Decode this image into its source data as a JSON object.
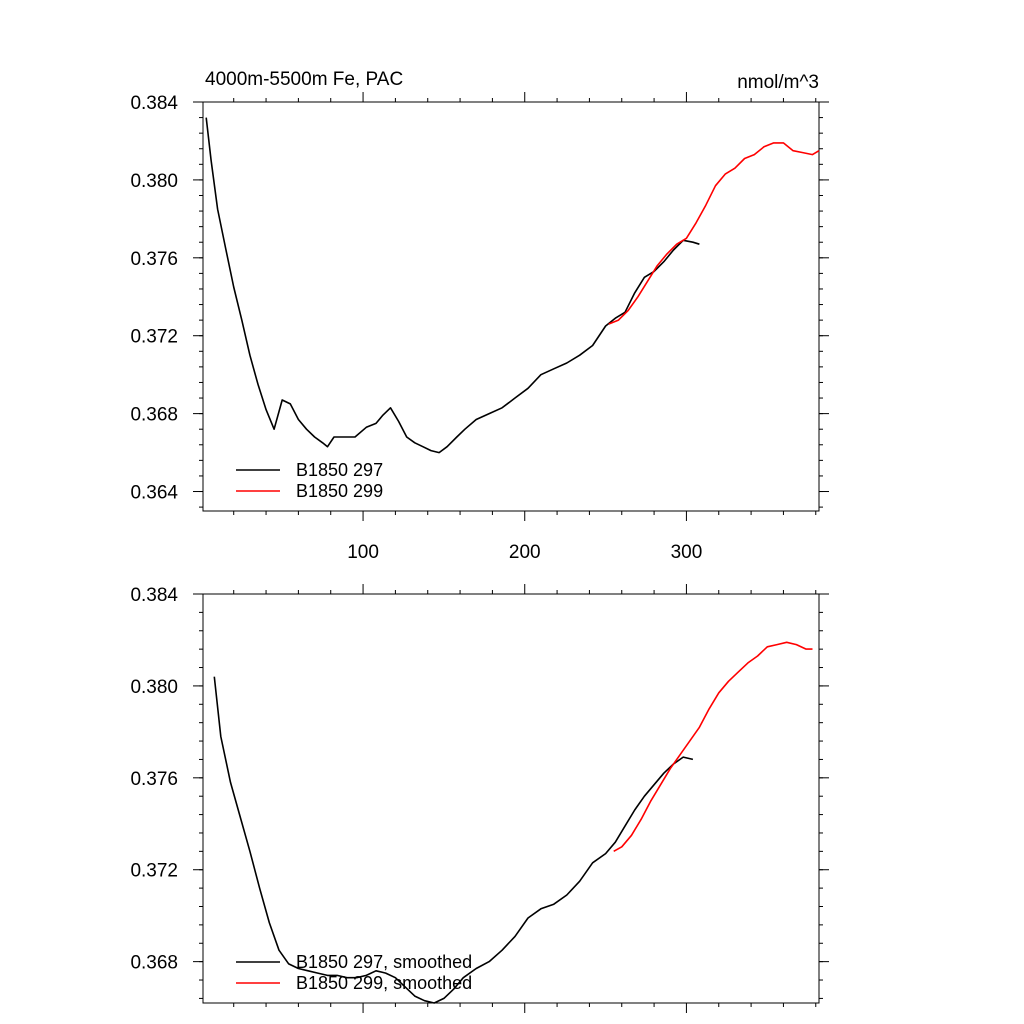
{
  "chart_data": [
    {
      "type": "line",
      "title": "4000m-5500m Fe, PAC",
      "units": "nmol/m^3",
      "xlabel": "",
      "ylabel": "",
      "xlim": [
        1,
        382
      ],
      "ylim": [
        0.363,
        0.384
      ],
      "xticks": [
        100,
        200,
        300
      ],
      "yticks": [
        0.364,
        0.368,
        0.372,
        0.376,
        0.38,
        0.384
      ],
      "ytick_labels": [
        "0.364",
        "0.368",
        "0.372",
        "0.376",
        "0.380",
        "0.384"
      ],
      "xtick_labels": [
        "100",
        "200",
        "300"
      ],
      "grid": false,
      "legend_position": "bottom-left",
      "series": [
        {
          "name": "B1850 297",
          "color": "#000000",
          "x": [
            3,
            6,
            10,
            15,
            20,
            25,
            30,
            35,
            40,
            45,
            50,
            55,
            60,
            65,
            70,
            75,
            78,
            82,
            88,
            95,
            102,
            108,
            112,
            117,
            122,
            127,
            132,
            137,
            142,
            147,
            152,
            158,
            163,
            170,
            178,
            186,
            194,
            202,
            210,
            218,
            226,
            234,
            242,
            250,
            256,
            262,
            268,
            274,
            280,
            286,
            292,
            298,
            304,
            308
          ],
          "y": [
            0.3832,
            0.381,
            0.3785,
            0.3765,
            0.3745,
            0.3728,
            0.371,
            0.3695,
            0.3682,
            0.3672,
            0.3687,
            0.3685,
            0.3677,
            0.3672,
            0.3668,
            0.3665,
            0.3663,
            0.3668,
            0.3668,
            0.3668,
            0.3673,
            0.3675,
            0.3679,
            0.3683,
            0.3676,
            0.3668,
            0.3665,
            0.3663,
            0.3661,
            0.366,
            0.3663,
            0.3668,
            0.3672,
            0.3677,
            0.368,
            0.3683,
            0.3688,
            0.3693,
            0.37,
            0.3703,
            0.3706,
            0.371,
            0.3715,
            0.3725,
            0.3729,
            0.3732,
            0.3742,
            0.375,
            0.3753,
            0.3758,
            0.3764,
            0.3769,
            0.3768,
            0.3767
          ]
        },
        {
          "name": "B1850 299",
          "color": "#ff0000",
          "x": [
            252,
            258,
            264,
            270,
            276,
            282,
            288,
            294,
            300,
            306,
            312,
            318,
            324,
            330,
            336,
            342,
            348,
            354,
            360,
            366,
            372,
            378,
            382
          ],
          "y": [
            0.3726,
            0.3728,
            0.3733,
            0.374,
            0.3748,
            0.3756,
            0.3762,
            0.3767,
            0.377,
            0.3778,
            0.3787,
            0.3797,
            0.3803,
            0.3806,
            0.3811,
            0.3813,
            0.3817,
            0.3819,
            0.3819,
            0.3815,
            0.3814,
            0.3813,
            0.3815
          ]
        }
      ]
    },
    {
      "type": "line",
      "title": "",
      "xlabel": "",
      "ylabel": "",
      "xlim": [
        1,
        382
      ],
      "ylim": [
        0.3662,
        0.384
      ],
      "xticks": [
        100,
        200,
        300
      ],
      "yticks": [
        0.368,
        0.372,
        0.376,
        0.38,
        0.384
      ],
      "ytick_labels": [
        "0.368",
        "0.372",
        "0.376",
        "0.380",
        "0.384"
      ],
      "grid": false,
      "legend_position": "bottom-left",
      "series": [
        {
          "name": "B1850 297, smoothed",
          "color": "#000000",
          "x": [
            8,
            12,
            18,
            24,
            30,
            36,
            42,
            48,
            54,
            60,
            66,
            72,
            78,
            84,
            90,
            96,
            102,
            108,
            114,
            120,
            126,
            132,
            138,
            144,
            150,
            156,
            162,
            170,
            178,
            186,
            194,
            202,
            210,
            218,
            226,
            234,
            242,
            250,
            256,
            262,
            268,
            274,
            280,
            286,
            292,
            298,
            304
          ],
          "y": [
            0.3804,
            0.3778,
            0.3758,
            0.3743,
            0.3728,
            0.3712,
            0.3697,
            0.3685,
            0.3679,
            0.3677,
            0.3676,
            0.3675,
            0.3674,
            0.3674,
            0.3673,
            0.3673,
            0.3674,
            0.3676,
            0.3675,
            0.3673,
            0.3669,
            0.3665,
            0.3663,
            0.3662,
            0.3664,
            0.3668,
            0.3673,
            0.3677,
            0.368,
            0.3685,
            0.3691,
            0.3699,
            0.3703,
            0.3705,
            0.3709,
            0.3715,
            0.3723,
            0.3727,
            0.3732,
            0.3739,
            0.3746,
            0.3752,
            0.3757,
            0.3762,
            0.3766,
            0.3769,
            0.3768
          ]
        },
        {
          "name": "B1850 299, smoothed",
          "color": "#ff0000",
          "x": [
            255,
            260,
            266,
            272,
            278,
            284,
            290,
            296,
            302,
            308,
            314,
            320,
            326,
            332,
            338,
            344,
            350,
            356,
            362,
            368,
            374,
            378
          ],
          "y": [
            0.3728,
            0.373,
            0.3735,
            0.3742,
            0.375,
            0.3757,
            0.3764,
            0.377,
            0.3776,
            0.3782,
            0.379,
            0.3797,
            0.3802,
            0.3806,
            0.381,
            0.3813,
            0.3817,
            0.3818,
            0.3819,
            0.3818,
            0.3816,
            0.3816
          ]
        }
      ]
    }
  ]
}
